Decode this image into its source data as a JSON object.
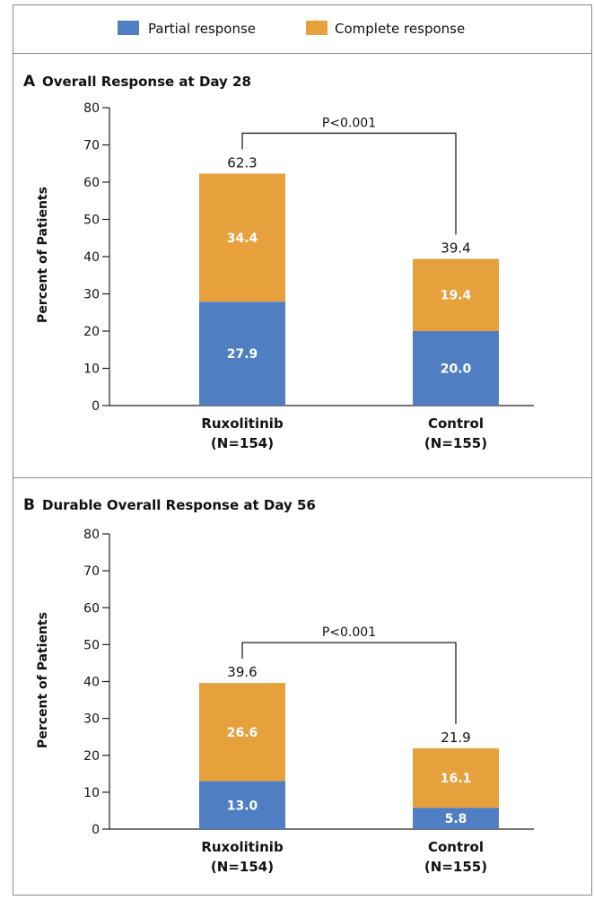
{
  "legend": {
    "items": [
      {
        "label": "Partial response",
        "color": "#4f7fc2"
      },
      {
        "label": "Complete response",
        "color": "#e6a13c"
      }
    ]
  },
  "chart_data": [
    {
      "type": "bar",
      "stacked": true,
      "panel": "A",
      "title": "Overall Response at Day 28",
      "ylabel": "Percent of Patients",
      "ylim": [
        0,
        80
      ],
      "yticks": [
        0,
        10,
        20,
        30,
        40,
        50,
        60,
        70,
        80
      ],
      "categories": [
        "Ruxolitinib\n(N=154)",
        "Control\n(N=155)"
      ],
      "series": [
        {
          "name": "Partial response",
          "values": [
            27.9,
            20.0
          ]
        },
        {
          "name": "Complete response",
          "values": [
            34.4,
            19.4
          ]
        }
      ],
      "totals": [
        62.3,
        39.4
      ],
      "annotation": "P<0.001"
    },
    {
      "type": "bar",
      "stacked": true,
      "panel": "B",
      "title": "Durable Overall Response at Day 56",
      "ylabel": "Percent of Patients",
      "ylim": [
        0,
        80
      ],
      "yticks": [
        0,
        10,
        20,
        30,
        40,
        50,
        60,
        70,
        80
      ],
      "categories": [
        "Ruxolitinib\n(N=154)",
        "Control\n(N=155)"
      ],
      "series": [
        {
          "name": "Partial response",
          "values": [
            13.0,
            5.8
          ]
        },
        {
          "name": "Complete response",
          "values": [
            26.6,
            16.1
          ]
        }
      ],
      "totals": [
        39.6,
        21.9
      ],
      "annotation": "P<0.001"
    }
  ]
}
